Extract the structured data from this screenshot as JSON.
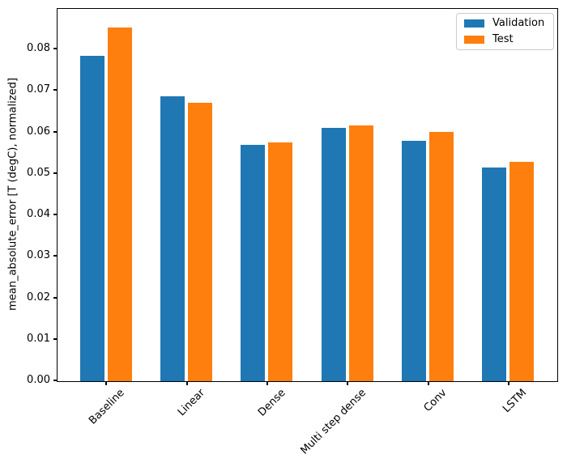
{
  "chart_data": {
    "type": "bar",
    "title": "",
    "categories": [
      "Baseline",
      "Linear",
      "Dense",
      "Multi step dense",
      "Conv",
      "LSTM"
    ],
    "series": [
      {
        "name": "Validation",
        "color": "#1f77b4",
        "values": [
          0.0785,
          0.0687,
          0.0571,
          0.0611,
          0.0579,
          0.0516
        ]
      },
      {
        "name": "Test",
        "color": "#ff7f0e",
        "values": [
          0.0853,
          0.0671,
          0.0575,
          0.0616,
          0.0601,
          0.0529
        ]
      }
    ],
    "xlabel": "",
    "ylabel": "mean_absolute_error [T (degC), normalized]",
    "ylim": [
      0,
      0.0896
    ],
    "yticks": [
      "0.00",
      "0.01",
      "0.02",
      "0.03",
      "0.04",
      "0.05",
      "0.06",
      "0.07",
      "0.08"
    ],
    "grid": false,
    "legend_position": "upper right",
    "bar_width_units": 0.3,
    "bar_offset_units": 0.17,
    "spine_color": "#000000",
    "background_color": "#ffffff"
  }
}
